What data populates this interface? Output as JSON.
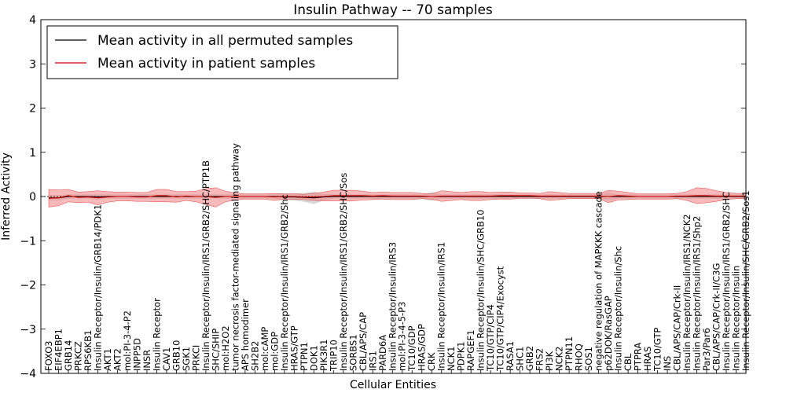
{
  "chart_data": {
    "type": "line",
    "title": "Insulin Pathway -- 70 samples",
    "xlabel": "Cellular Entities",
    "ylabel": "Inferred Activity",
    "ylim": [
      -4,
      4
    ],
    "yticks": [
      "4",
      "3",
      "2",
      "1",
      "0",
      "−1",
      "−2",
      "−3",
      "−4"
    ],
    "grid": false,
    "legend_position": "top-left",
    "colors": {
      "permuted": "#000000",
      "patient": "#d00000",
      "patient_band": "#f08080",
      "permuted_band": "#c8c8c8"
    },
    "categories": [
      "FOXO3",
      "EIF4EBP1",
      "GRB14",
      "PRKCZ",
      "RPS6KB1",
      "Insulin Receptor/Insulin/GRB14/PDK1",
      "AKT1",
      "AKT2",
      "mol:PI-3-4-P2",
      "INPP5D",
      "INSR",
      "Insulin Receptor",
      "CAV1",
      "GRB10",
      "SGK1",
      "PRKCI",
      "Insulin Receptor/Insulin/IRS1/GRB2/SHC/PTP1B",
      "SHC/SHIP",
      "mol:H2O2",
      "tumor necrosis factor-mediated signaling pathway",
      "APS homodimer",
      "SH2B2",
      "mol:cAMP",
      "mol:GDP",
      "Insulin Receptor/Insulin/IRS1/GRB2/Shc",
      "HRAS/GTP",
      "PTPN1",
      "DOK1",
      "PIK3R1",
      "TRIP10",
      "Insulin Receptor/Insulin/IRS1/GRB2/SHC/Sos",
      "SORBS1",
      "CBL/APS/CAP",
      "IRS1",
      "PARD6A",
      "Insulin Receptor/Insulin/IRS3",
      "mol:PI-3-4-5-P3",
      "TC10/GDP",
      "HRAS/GDP",
      "CRK",
      "Insulin Receptor/Insulin/IRS1",
      "NCK1",
      "PDPK1",
      "RAPGEF1",
      "Insulin Receptor/Insulin/SHC/GRB10",
      "TC10/GTP/CIP4",
      "TC10/GTP/CIP4/Exocyst",
      "RASA1",
      "SHC1",
      "GRB2",
      "FRS2",
      "PI3K",
      "NCK2",
      "PTPN11",
      "RHOQ",
      "SOS1",
      "negative regulation of MAPKKK cascade",
      "p62DOK/RasGAP",
      "Insulin Receptor/Insulin/Shc",
      "CBL",
      "PTPRA",
      "HRAS",
      "TC10/GTP",
      "INS",
      "CBL/APS/CAP/Crk-II",
      "Insulin Receptor/Insulin/IRS1/NCK2",
      "Insulin Receptor/Insulin/IRS1/Shp2",
      "Par3/Par6",
      "CBL/APS/CAP/Crk-II/C3G",
      "Insulin Receptor/Insulin/IRS1/GRB2/SHC",
      "Insulin Receptor/Insulin",
      "Insulin Receptor/Insulin/SHC/GRB2/Sos1"
    ],
    "series": [
      {
        "name": "Mean activity in all permuted samples",
        "values": [
          -0.03,
          -0.03,
          0.0,
          0.0,
          0.0,
          -0.01,
          0.0,
          0.0,
          0.0,
          0.0,
          0.0,
          0.0,
          0.0,
          0.0,
          0.0,
          0.0,
          0.0,
          0.0,
          0.0,
          0.0,
          0.0,
          0.0,
          0.0,
          0.0,
          -0.01,
          -0.01,
          -0.02,
          -0.03,
          -0.01,
          0.0,
          0.0,
          0.0,
          0.0,
          0.0,
          0.0,
          0.0,
          0.0,
          0.0,
          0.0,
          0.0,
          0.0,
          0.0,
          0.0,
          0.0,
          0.0,
          0.0,
          0.0,
          0.0,
          0.0,
          0.0,
          0.0,
          0.0,
          0.0,
          0.0,
          0.0,
          0.0,
          0.0,
          0.0,
          0.0,
          0.0,
          0.0,
          0.0,
          0.0,
          0.0,
          0.0,
          0.0,
          0.0,
          0.0,
          0.0,
          0.0,
          0.0,
          0.0
        ],
        "band": [
          0.06,
          0.06,
          0.05,
          0.05,
          0.05,
          0.06,
          0.05,
          0.05,
          0.05,
          0.05,
          0.05,
          0.05,
          0.05,
          0.05,
          0.05,
          0.05,
          0.05,
          0.05,
          0.05,
          0.05,
          0.05,
          0.05,
          0.05,
          0.05,
          0.08,
          0.08,
          0.1,
          0.14,
          0.08,
          0.05,
          0.05,
          0.05,
          0.05,
          0.05,
          0.05,
          0.05,
          0.05,
          0.05,
          0.05,
          0.1,
          0.05,
          0.05,
          0.05,
          0.05,
          0.05,
          0.05,
          0.05,
          0.05,
          0.05,
          0.05,
          0.05,
          0.05,
          0.05,
          0.05,
          0.05,
          0.05,
          0.05,
          0.1,
          0.05,
          0.05,
          0.05,
          0.05,
          0.05,
          0.05,
          0.05,
          0.05,
          0.05,
          0.05,
          0.05,
          0.05,
          0.05,
          0.05
        ]
      },
      {
        "name": "Mean activity in patient samples",
        "values": [
          -0.04,
          -0.03,
          0.02,
          -0.02,
          -0.01,
          -0.03,
          -0.01,
          0.0,
          0.0,
          -0.01,
          -0.01,
          0.02,
          0.02,
          -0.01,
          0.01,
          0.0,
          0.0,
          -0.02,
          0.0,
          0.0,
          0.0,
          0.0,
          0.0,
          -0.01,
          0.0,
          0.0,
          -0.01,
          -0.01,
          0.0,
          0.02,
          0.02,
          0.02,
          0.02,
          0.01,
          0.02,
          0.01,
          0.01,
          0.01,
          0.01,
          0.0,
          0.01,
          0.01,
          0.01,
          0.01,
          0.01,
          0.01,
          0.02,
          0.02,
          0.02,
          0.02,
          0.01,
          0.01,
          0.01,
          0.01,
          0.01,
          0.01,
          0.01,
          0.0,
          0.02,
          0.01,
          0.0,
          0.0,
          0.0,
          0.0,
          0.01,
          0.01,
          0.02,
          0.02,
          0.01,
          0.01,
          0.01,
          0.01
        ],
        "band": [
          0.2,
          0.18,
          0.14,
          0.12,
          0.12,
          0.16,
          0.12,
          0.1,
          0.1,
          0.1,
          0.1,
          0.14,
          0.14,
          0.12,
          0.1,
          0.12,
          0.18,
          0.22,
          0.12,
          0.08,
          0.06,
          0.06,
          0.06,
          0.08,
          0.06,
          0.06,
          0.06,
          0.08,
          0.1,
          0.12,
          0.12,
          0.12,
          0.1,
          0.08,
          0.08,
          0.08,
          0.08,
          0.08,
          0.06,
          0.06,
          0.12,
          0.1,
          0.08,
          0.1,
          0.1,
          0.08,
          0.08,
          0.08,
          0.06,
          0.06,
          0.06,
          0.1,
          0.08,
          0.06,
          0.06,
          0.06,
          0.06,
          0.14,
          0.1,
          0.08,
          0.06,
          0.06,
          0.06,
          0.06,
          0.06,
          0.1,
          0.18,
          0.16,
          0.12,
          0.08,
          0.06,
          0.06
        ]
      }
    ]
  }
}
